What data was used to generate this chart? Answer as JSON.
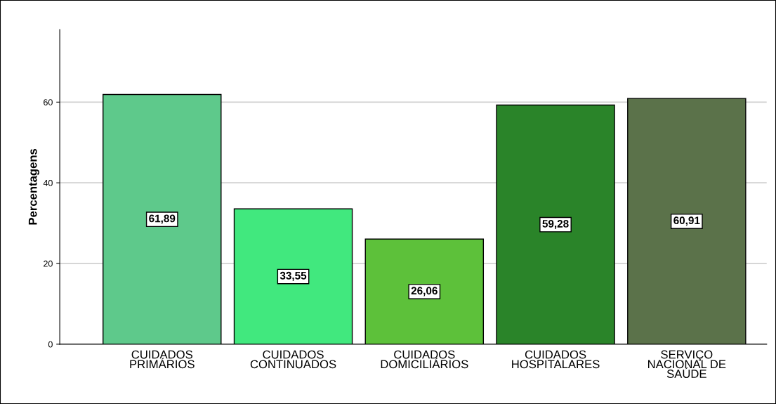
{
  "chart_data": {
    "type": "bar",
    "ylabel": "Percentagens",
    "categories": [
      "CUIDADOS\nPRIMÁRIOS",
      "CUIDADOS\nCONTINUADOS",
      "CUIDADOS\nDOMICILIÁRIOS",
      "CUIDADOS\nHOSPITALARES",
      "SERVIÇO\nNACIONAL DE\nSAÚDE"
    ],
    "values": [
      61.89,
      33.55,
      26.06,
      59.28,
      60.91
    ],
    "value_labels": [
      "61,89",
      "33,55",
      "26,06",
      "59,28",
      "60,91"
    ],
    "colors": [
      "#5ec98b",
      "#41e87e",
      "#5dc13a",
      "#2a8429",
      "#5b724a"
    ],
    "ylim": [
      0,
      78
    ],
    "yticks": [
      0,
      20,
      40,
      60
    ],
    "grid": "y"
  }
}
